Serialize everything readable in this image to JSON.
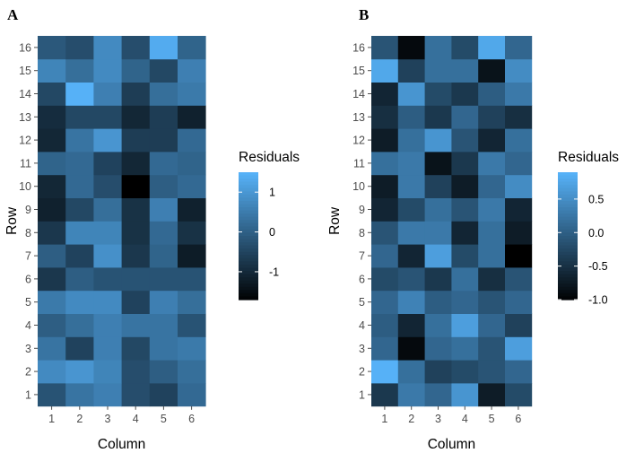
{
  "chart_data": [
    {
      "type": "heatmap",
      "panel_label": "A",
      "xlabel": "Column",
      "ylabel": "Row",
      "x_categories": [
        "1",
        "2",
        "3",
        "4",
        "5",
        "6"
      ],
      "y_categories": [
        "1",
        "2",
        "3",
        "4",
        "5",
        "6",
        "7",
        "8",
        "9",
        "10",
        "11",
        "12",
        "13",
        "14",
        "15",
        "16"
      ],
      "values": [
        [
          -0.2,
          0.4,
          0.6,
          -0.3,
          -0.5,
          0.2
        ],
        [
          0.8,
          1.0,
          0.7,
          -0.3,
          0.0,
          0.3
        ],
        [
          0.4,
          -0.5,
          0.6,
          -0.4,
          0.4,
          0.5
        ],
        [
          0.0,
          0.3,
          0.6,
          0.4,
          0.4,
          -0.2
        ],
        [
          0.5,
          0.8,
          0.8,
          -0.5,
          0.6,
          0.3
        ],
        [
          -0.7,
          0.0,
          -0.2,
          -0.2,
          -0.2,
          -0.2
        ],
        [
          0.0,
          -0.5,
          0.9,
          -0.7,
          0.1,
          -1.2
        ],
        [
          -0.7,
          0.7,
          0.7,
          -0.8,
          0.2,
          -0.8
        ],
        [
          -1.1,
          -0.4,
          0.3,
          -0.8,
          0.6,
          -1.1
        ],
        [
          -1.0,
          0.2,
          -0.3,
          -1.7,
          0.0,
          0.2
        ],
        [
          0.1,
          0.2,
          -0.5,
          -1.0,
          0.2,
          0.1
        ],
        [
          -1.0,
          0.4,
          1.0,
          -0.6,
          -0.6,
          0.2
        ],
        [
          -0.9,
          -0.4,
          -0.4,
          -1.0,
          -0.6,
          -1.1
        ],
        [
          -0.4,
          1.5,
          0.6,
          -0.6,
          0.3,
          0.5
        ],
        [
          0.7,
          0.3,
          0.8,
          0.1,
          -0.4,
          0.6
        ],
        [
          -0.1,
          -0.3,
          0.8,
          -0.3,
          1.4,
          0.1
        ]
      ],
      "legend": {
        "title": "Residuals",
        "min": -1.7,
        "max": 1.5,
        "ticks": [
          1,
          0,
          -1
        ],
        "tick_labels": [
          "1",
          "0",
          "-1"
        ]
      }
    },
    {
      "type": "heatmap",
      "panel_label": "B",
      "xlabel": "Column",
      "ylabel": "Row",
      "x_categories": [
        "1",
        "2",
        "3",
        "4",
        "5",
        "6"
      ],
      "y_categories": [
        "1",
        "2",
        "3",
        "4",
        "5",
        "6",
        "7",
        "8",
        "9",
        "10",
        "11",
        "12",
        "13",
        "14",
        "15",
        "16"
      ],
      "values": [
        [
          -0.4,
          0.3,
          0.1,
          0.6,
          -0.7,
          -0.2
        ],
        [
          0.9,
          0.2,
          -0.3,
          -0.2,
          -0.1,
          0.1
        ],
        [
          0.1,
          -0.9,
          0.1,
          0.2,
          -0.1,
          0.7
        ],
        [
          0.0,
          -0.6,
          0.2,
          0.7,
          0.1,
          -0.3
        ],
        [
          0.1,
          0.4,
          0.0,
          0.1,
          -0.1,
          0.1
        ],
        [
          -0.2,
          -0.1,
          -0.4,
          0.2,
          -0.5,
          -0.1
        ],
        [
          0.1,
          -0.6,
          0.7,
          -0.2,
          0.2,
          -1.0
        ],
        [
          -0.1,
          0.3,
          0.3,
          -0.6,
          0.2,
          -0.7
        ],
        [
          -0.6,
          -0.2,
          0.2,
          -0.1,
          0.3,
          -0.6
        ],
        [
          -0.7,
          0.3,
          -0.3,
          -0.7,
          0.1,
          0.5
        ],
        [
          0.2,
          0.3,
          -0.8,
          -0.4,
          0.3,
          0.1
        ],
        [
          -0.7,
          0.2,
          0.6,
          -0.1,
          -0.6,
          0.2
        ],
        [
          -0.5,
          0.0,
          -0.4,
          0.1,
          -0.3,
          -0.5
        ],
        [
          -0.6,
          0.6,
          -0.2,
          -0.4,
          0.0,
          0.3
        ],
        [
          0.8,
          -0.3,
          0.2,
          0.2,
          -0.8,
          0.5
        ],
        [
          -0.1,
          -0.9,
          0.2,
          -0.2,
          0.8,
          0.1
        ]
      ],
      "legend": {
        "title": "Residuals",
        "min": -1.0,
        "max": 0.9,
        "ticks": [
          0.5,
          0.0,
          -0.5,
          -1.0
        ],
        "tick_labels": [
          "0.5",
          "0.0",
          "-0.5",
          "-1.0"
        ]
      }
    }
  ],
  "colors": {
    "low": "#000000",
    "high": "#56b1f7",
    "tick": "#4d4d4d",
    "axis_line": "#dddddd"
  }
}
